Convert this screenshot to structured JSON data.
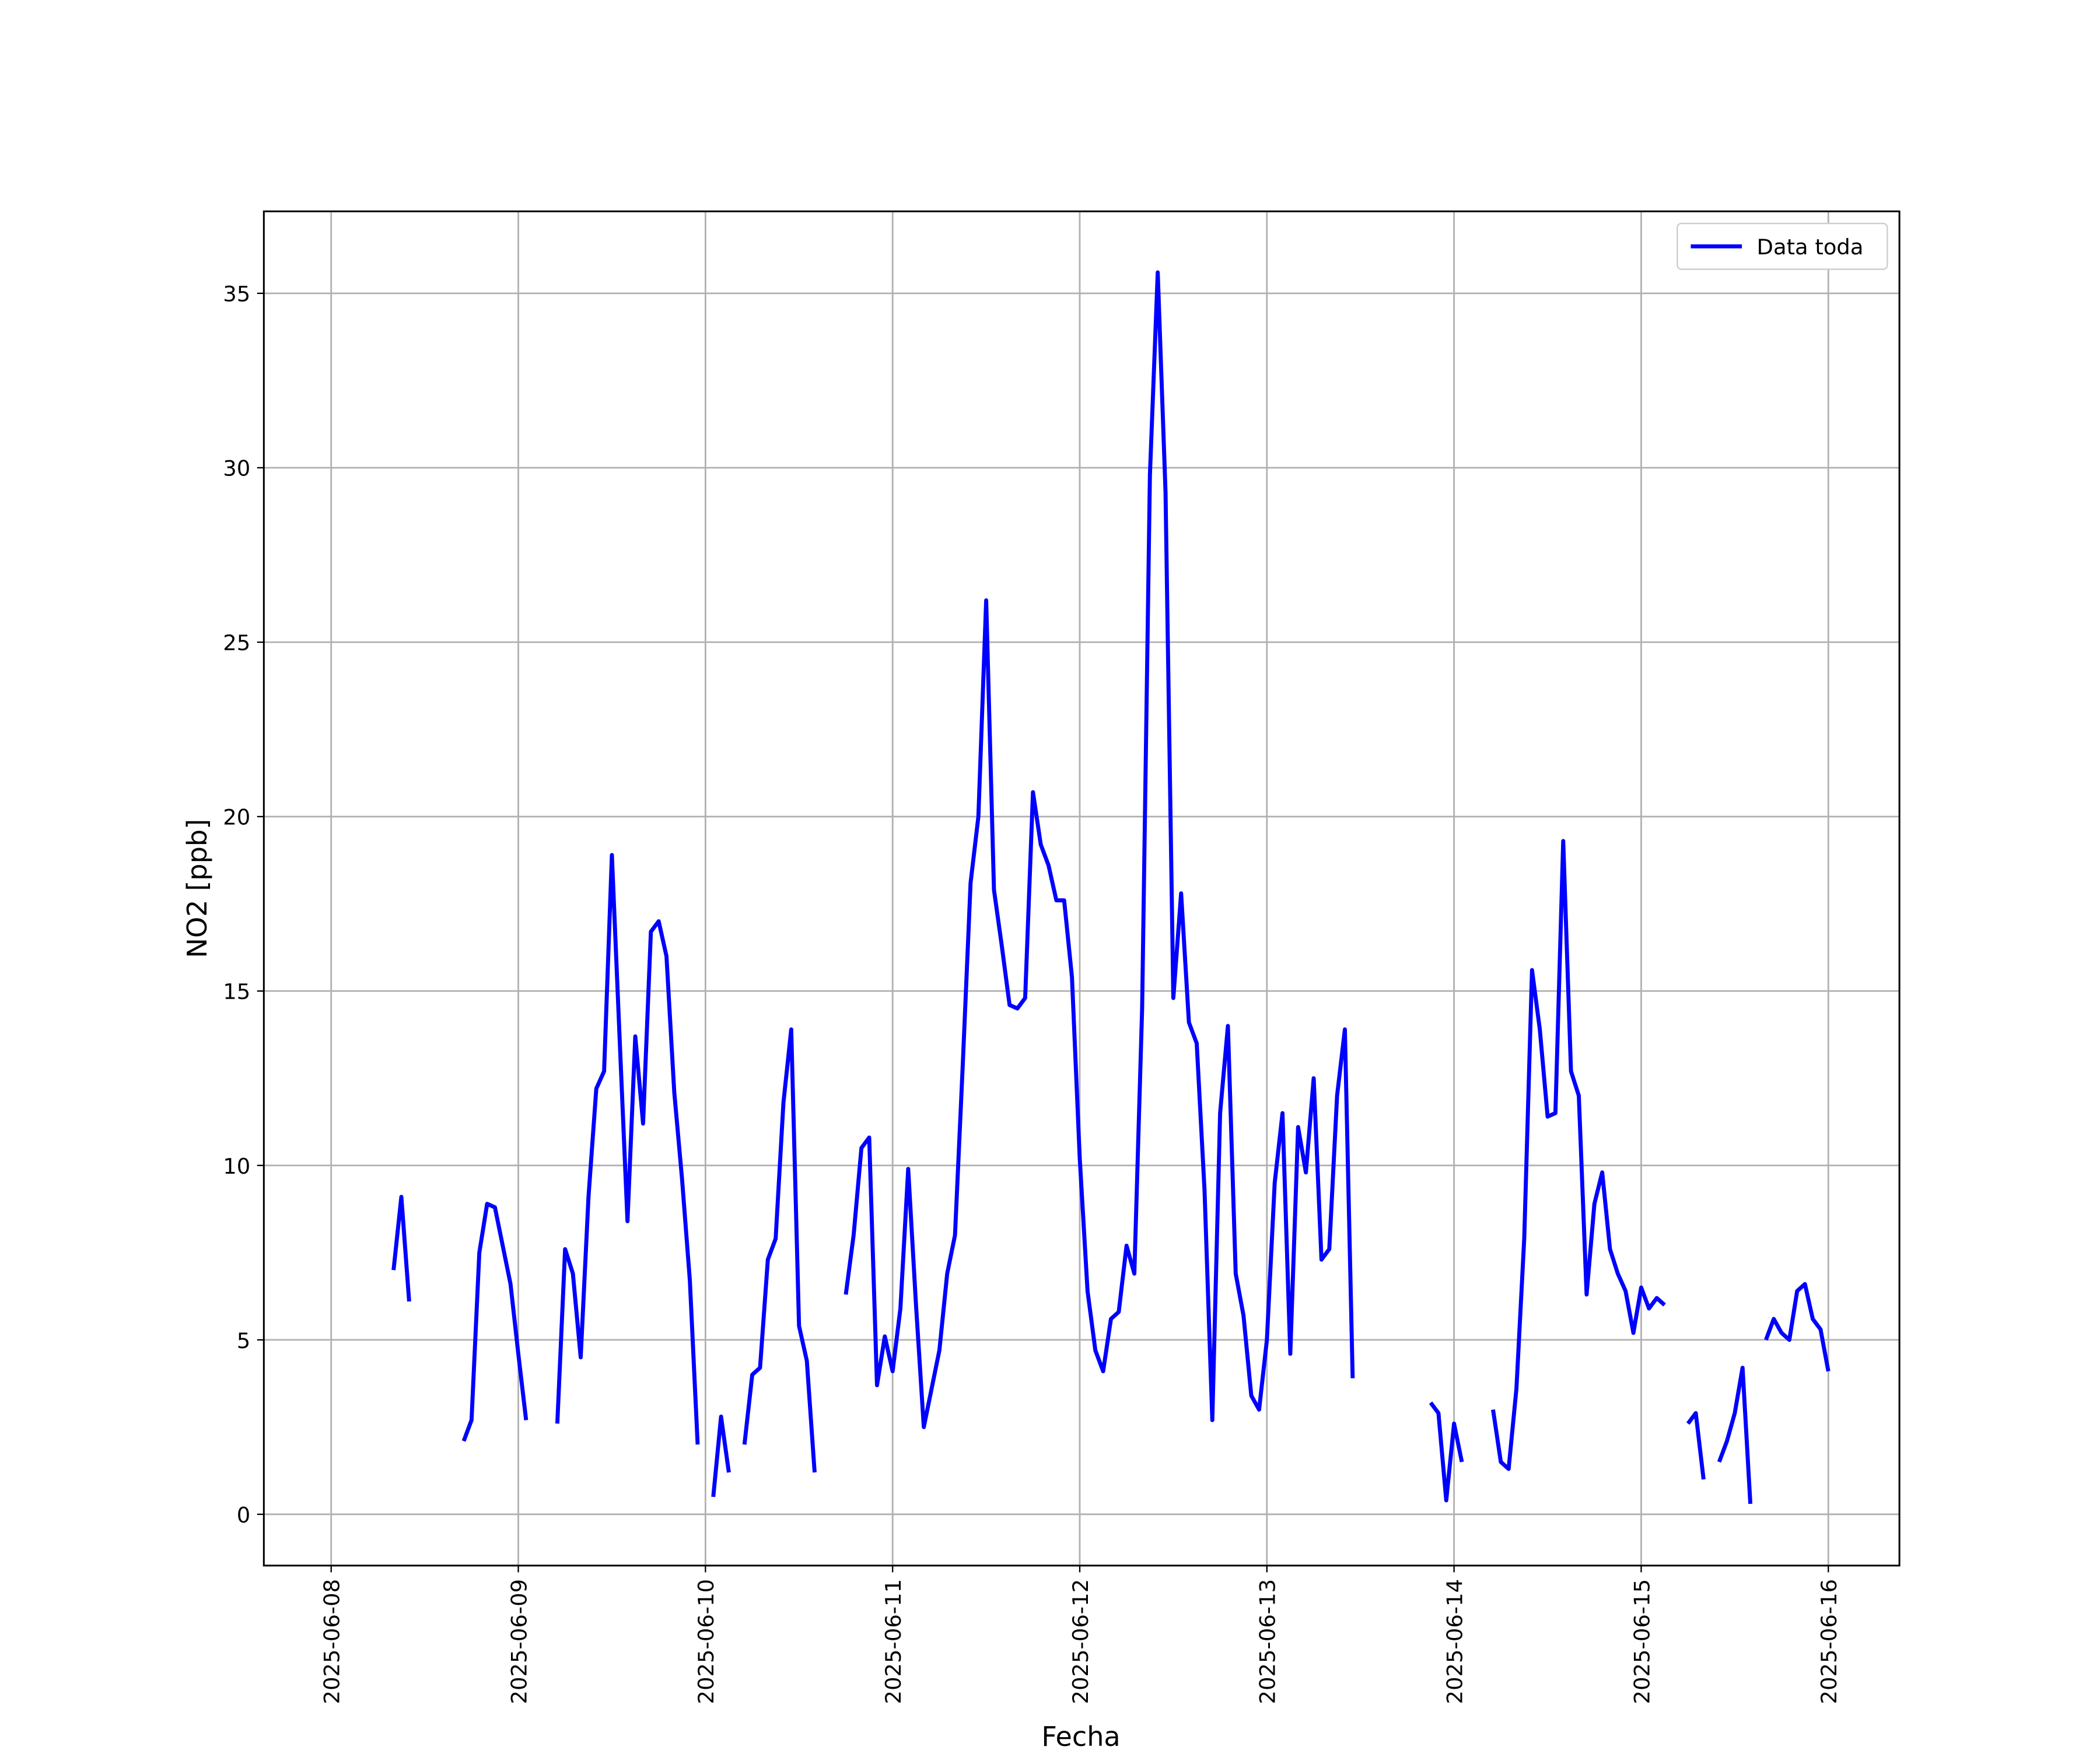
{
  "chart_data": {
    "type": "line",
    "xlabel": "Fecha",
    "ylabel": "NO2 [ppb]",
    "x": [
      "2025-06-08T08:00",
      "2025-06-08T09:00",
      "2025-06-08T10:00",
      "2025-06-08T11:00",
      "2025-06-08T17:00",
      "2025-06-08T18:00",
      "2025-06-08T19:00",
      "2025-06-08T20:00",
      "2025-06-08T21:00",
      "2025-06-08T22:00",
      "2025-06-08T23:00",
      "2025-06-09T00:00",
      "2025-06-09T01:00",
      "2025-06-09T02:00",
      "2025-06-09T05:00",
      "2025-06-09T06:00",
      "2025-06-09T07:00",
      "2025-06-09T08:00",
      "2025-06-09T09:00",
      "2025-06-09T10:00",
      "2025-06-09T11:00",
      "2025-06-09T12:00",
      "2025-06-09T13:00",
      "2025-06-09T14:00",
      "2025-06-09T15:00",
      "2025-06-09T16:00",
      "2025-06-09T17:00",
      "2025-06-09T18:00",
      "2025-06-09T19:00",
      "2025-06-09T20:00",
      "2025-06-09T21:00",
      "2025-06-09T22:00",
      "2025-06-09T23:00",
      "2025-06-10T00:00",
      "2025-06-10T01:00",
      "2025-06-10T02:00",
      "2025-06-10T03:00",
      "2025-06-10T04:00",
      "2025-06-10T05:00",
      "2025-06-10T06:00",
      "2025-06-10T07:00",
      "2025-06-10T08:00",
      "2025-06-10T09:00",
      "2025-06-10T10:00",
      "2025-06-10T11:00",
      "2025-06-10T12:00",
      "2025-06-10T13:00",
      "2025-06-10T14:00",
      "2025-06-10T15:00",
      "2025-06-10T18:00",
      "2025-06-10T19:00",
      "2025-06-10T20:00",
      "2025-06-10T21:00",
      "2025-06-10T22:00",
      "2025-06-10T23:00",
      "2025-06-11T00:00",
      "2025-06-11T01:00",
      "2025-06-11T02:00",
      "2025-06-11T03:00",
      "2025-06-11T04:00",
      "2025-06-11T05:00",
      "2025-06-11T06:00",
      "2025-06-11T07:00",
      "2025-06-11T08:00",
      "2025-06-11T09:00",
      "2025-06-11T10:00",
      "2025-06-11T11:00",
      "2025-06-11T12:00",
      "2025-06-11T13:00",
      "2025-06-11T14:00",
      "2025-06-11T15:00",
      "2025-06-11T16:00",
      "2025-06-11T17:00",
      "2025-06-11T18:00",
      "2025-06-11T19:00",
      "2025-06-11T20:00",
      "2025-06-11T21:00",
      "2025-06-11T22:00",
      "2025-06-11T23:00",
      "2025-06-12T00:00",
      "2025-06-12T01:00",
      "2025-06-12T02:00",
      "2025-06-12T03:00",
      "2025-06-12T04:00",
      "2025-06-12T05:00",
      "2025-06-12T06:00",
      "2025-06-12T07:00",
      "2025-06-12T08:00",
      "2025-06-12T09:00",
      "2025-06-12T10:00",
      "2025-06-12T11:00",
      "2025-06-12T12:00",
      "2025-06-12T13:00",
      "2025-06-12T14:00",
      "2025-06-12T15:00",
      "2025-06-12T16:00",
      "2025-06-12T17:00",
      "2025-06-12T18:00",
      "2025-06-12T19:00",
      "2025-06-12T20:00",
      "2025-06-12T21:00",
      "2025-06-12T22:00",
      "2025-06-12T23:00",
      "2025-06-13T00:00",
      "2025-06-13T01:00",
      "2025-06-13T02:00",
      "2025-06-13T03:00",
      "2025-06-13T04:00",
      "2025-06-13T05:00",
      "2025-06-13T06:00",
      "2025-06-13T07:00",
      "2025-06-13T08:00",
      "2025-06-13T09:00",
      "2025-06-13T10:00",
      "2025-06-13T11:00",
      "2025-06-13T12:00",
      "2025-06-13T21:00",
      "2025-06-13T22:00",
      "2025-06-13T23:00",
      "2025-06-14T00:00",
      "2025-06-14T01:00",
      "2025-06-14T02:00",
      "2025-06-14T05:00",
      "2025-06-14T06:00",
      "2025-06-14T07:00",
      "2025-06-14T08:00",
      "2025-06-14T09:00",
      "2025-06-14T10:00",
      "2025-06-14T11:00",
      "2025-06-14T12:00",
      "2025-06-14T13:00",
      "2025-06-14T14:00",
      "2025-06-14T15:00",
      "2025-06-14T16:00",
      "2025-06-14T17:00",
      "2025-06-14T18:00",
      "2025-06-14T19:00",
      "2025-06-14T20:00",
      "2025-06-14T21:00",
      "2025-06-14T22:00",
      "2025-06-14T23:00",
      "2025-06-15T00:00",
      "2025-06-15T01:00",
      "2025-06-15T02:00",
      "2025-06-15T03:00",
      "2025-06-15T04:00",
      "2025-06-15T06:00",
      "2025-06-15T07:00",
      "2025-06-15T08:00",
      "2025-06-15T09:00",
      "2025-06-15T10:00",
      "2025-06-15T11:00",
      "2025-06-15T12:00",
      "2025-06-15T13:00",
      "2025-06-15T14:00",
      "2025-06-15T15:00",
      "2025-06-15T16:00",
      "2025-06-15T17:00",
      "2025-06-15T18:00",
      "2025-06-15T19:00",
      "2025-06-15T20:00",
      "2025-06-15T21:00",
      "2025-06-15T22:00",
      "2025-06-15T23:00",
      "2025-06-16T00:00"
    ],
    "series": [
      {
        "name": "Data toda",
        "color": "#0000ff",
        "values": [
          7.0,
          9.1,
          6.1,
          null,
          2.1,
          2.7,
          7.5,
          8.9,
          8.8,
          7.7,
          6.6,
          4.6,
          2.7,
          null,
          2.6,
          7.6,
          6.9,
          4.5,
          9.1,
          12.2,
          12.7,
          18.9,
          13.6,
          8.4,
          13.7,
          11.2,
          16.7,
          17.0,
          16.0,
          12.1,
          9.6,
          6.7,
          2.0,
          null,
          0.5,
          2.8,
          1.2,
          null,
          2.0,
          4.0,
          4.2,
          7.3,
          7.9,
          11.8,
          13.9,
          5.4,
          4.4,
          1.2,
          null,
          6.3,
          8.0,
          10.5,
          10.8,
          3.7,
          5.1,
          4.1,
          5.9,
          9.9,
          6.0,
          2.5,
          3.6,
          4.7,
          6.9,
          8.0,
          12.9,
          18.1,
          20.0,
          26.2,
          17.9,
          16.3,
          14.6,
          14.5,
          14.8,
          20.7,
          19.2,
          18.6,
          17.6,
          17.6,
          15.4,
          10.2,
          6.4,
          4.7,
          4.1,
          5.6,
          5.8,
          7.7,
          6.9,
          14.5,
          29.8,
          35.6,
          29.3,
          14.8,
          17.8,
          14.1,
          13.5,
          9.3,
          2.7,
          11.5,
          14.0,
          6.9,
          5.7,
          3.4,
          3.0,
          5.0,
          9.5,
          11.5,
          4.6,
          11.1,
          9.8,
          12.5,
          7.3,
          7.6,
          12.0,
          13.9,
          3.9,
          null,
          3.2,
          2.9,
          0.4,
          2.6,
          1.5,
          null,
          3.0,
          1.5,
          1.3,
          3.6,
          7.9,
          15.6,
          13.9,
          11.4,
          11.5,
          19.3,
          12.7,
          12.0,
          6.3,
          8.9,
          9.8,
          7.6,
          6.9,
          6.4,
          5.2,
          6.5,
          5.9,
          6.2,
          6.0,
          null,
          2.6,
          2.9,
          1.0,
          null,
          1.5,
          2.1,
          2.9,
          4.2,
          0.3,
          null,
          5.0,
          5.6,
          5.2,
          5.0,
          6.4,
          6.6,
          5.6,
          5.3,
          4.1
        ]
      }
    ],
    "xlim": [
      "2025-06-07T15:22",
      "2025-06-16T09:07"
    ],
    "xticks": [
      "2025-06-08",
      "2025-06-09",
      "2025-06-10",
      "2025-06-11",
      "2025-06-12",
      "2025-06-13",
      "2025-06-14",
      "2025-06-15",
      "2025-06-16"
    ],
    "ylim": [
      -1.47,
      37.35
    ],
    "yticks": [
      0,
      5,
      10,
      15,
      20,
      25,
      30,
      35
    ],
    "grid": true,
    "legend": "upper right"
  }
}
